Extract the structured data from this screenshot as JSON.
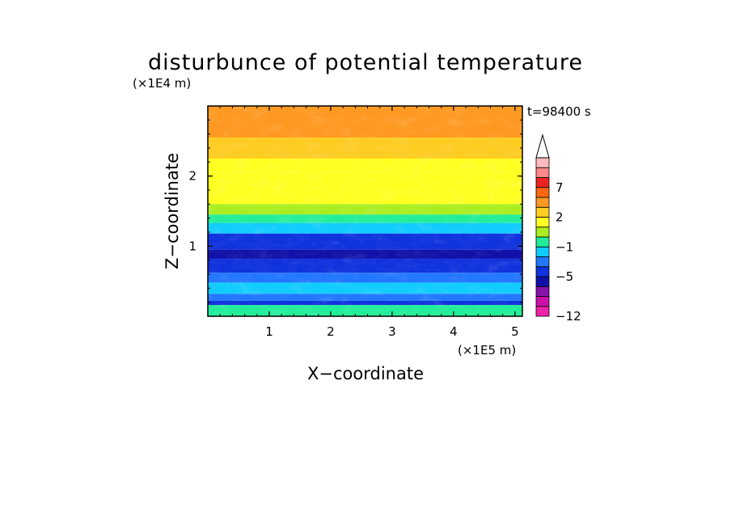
{
  "chart_data": {
    "type": "heatmap",
    "title": "disturbunce of potential temperature",
    "xlabel": "X−coordinate",
    "ylabel": "Z−coordinate",
    "x_scale_label": "(×1E5 m)",
    "y_scale_label": "(×1E4 m)",
    "time_label": "t=98400 s",
    "xlim": [
      0,
      5.12
    ],
    "ylim": [
      0,
      3.0
    ],
    "x_ticks": [
      {
        "value": 1,
        "label": "1"
      },
      {
        "value": 2,
        "label": "2"
      },
      {
        "value": 3,
        "label": "3"
      },
      {
        "value": 4,
        "label": "4"
      },
      {
        "value": 5,
        "label": "5"
      }
    ],
    "y_ticks": [
      {
        "value": 1,
        "label": "1"
      },
      {
        "value": 2,
        "label": "2"
      }
    ],
    "colorbar": {
      "levels": [
        -12,
        -10,
        -8,
        -7,
        -5,
        -3,
        -2,
        -1,
        0,
        1,
        2,
        3,
        5,
        7,
        8,
        10
      ],
      "colors": [
        "#ee22aa",
        "#cc11aa",
        "#8811aa",
        "#1111aa",
        "#1133dd",
        "#2277ff",
        "#11ccff",
        "#22ee99",
        "#aaee22",
        "#ffff22",
        "#ffcc22",
        "#ff9922",
        "#ff6611",
        "#ee2222",
        "#ff8888",
        "#ffbbbb"
      ],
      "labels": [
        {
          "level": -12,
          "text": "−12"
        },
        {
          "level": -5,
          "text": "−5"
        },
        {
          "level": -1,
          "text": "−1"
        },
        {
          "level": 2,
          "text": "2"
        },
        {
          "level": 7,
          "text": "7"
        }
      ],
      "extend": "max"
    }
  }
}
